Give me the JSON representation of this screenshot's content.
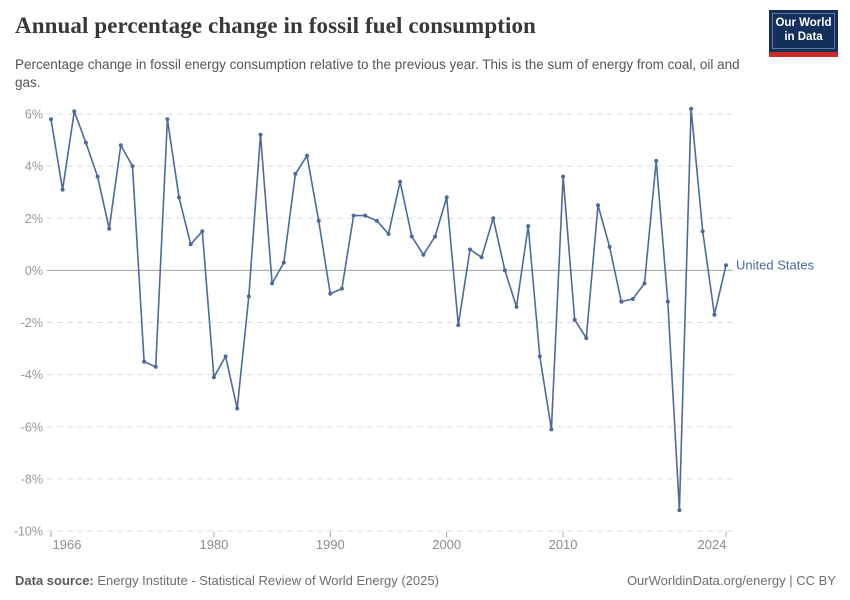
{
  "header": {
    "title": "Annual percentage change in fossil fuel consumption",
    "subtitle": "Percentage change in fossil energy consumption relative to the previous year. This is the sum of energy from coal, oil and gas.",
    "logo_line1": "Our World",
    "logo_line2": "in Data",
    "logo_bg_color": "#12305b",
    "logo_accent_color": "#ca2b29"
  },
  "footer": {
    "source_label": "Data source:",
    "source_text": "Energy Institute - Statistical Review of World Energy (2025)",
    "credit": "OurWorldinData.org/energy | CC BY"
  },
  "chart_data": {
    "type": "line",
    "title": "Annual percentage change in fossil fuel consumption",
    "xlabel": "",
    "ylabel": "",
    "xlim": [
      1966,
      2024
    ],
    "ylim": [
      -10,
      6
    ],
    "x_ticks": [
      1966,
      1980,
      1990,
      2000,
      2010,
      2024
    ],
    "y_ticks": [
      6,
      4,
      2,
      0,
      -2,
      -4,
      -6,
      -8,
      -10
    ],
    "y_tick_suffix": "%",
    "grid": "horizontal-dashed",
    "zero_line": true,
    "legend_position": "end-of-line-label",
    "colors": {
      "line": "#4C6A9C",
      "gridline": "#dddddd",
      "zero_line": "#a3a3a3",
      "axis_text": "#979797"
    },
    "series": [
      {
        "name": "United States",
        "color": "#4C6A9C",
        "years": [
          1966,
          1967,
          1968,
          1969,
          1970,
          1971,
          1972,
          1973,
          1974,
          1975,
          1976,
          1977,
          1978,
          1979,
          1980,
          1981,
          1982,
          1983,
          1984,
          1985,
          1986,
          1987,
          1988,
          1989,
          1990,
          1991,
          1992,
          1993,
          1994,
          1995,
          1996,
          1997,
          1998,
          1999,
          2000,
          2001,
          2002,
          2003,
          2004,
          2005,
          2006,
          2007,
          2008,
          2009,
          2010,
          2011,
          2012,
          2013,
          2014,
          2015,
          2016,
          2017,
          2018,
          2019,
          2020,
          2021,
          2022,
          2023,
          2024
        ],
        "values": [
          5.8,
          3.1,
          6.1,
          4.9,
          3.6,
          1.6,
          4.8,
          4.0,
          -3.5,
          -3.7,
          5.8,
          2.8,
          1.0,
          1.5,
          -4.1,
          -3.3,
          -5.3,
          -1.0,
          5.2,
          -0.5,
          0.3,
          3.7,
          4.4,
          1.9,
          -0.9,
          -0.7,
          2.1,
          2.1,
          1.9,
          1.4,
          3.4,
          1.3,
          0.6,
          1.3,
          2.8,
          -2.1,
          0.8,
          0.5,
          2.0,
          0.0,
          -1.4,
          1.7,
          -3.3,
          -6.1,
          3.6,
          -1.9,
          -2.6,
          2.5,
          0.9,
          -1.2,
          -1.1,
          -0.5,
          4.2,
          -1.2,
          -9.2,
          6.2,
          1.5,
          -1.7,
          0.2
        ]
      }
    ]
  }
}
